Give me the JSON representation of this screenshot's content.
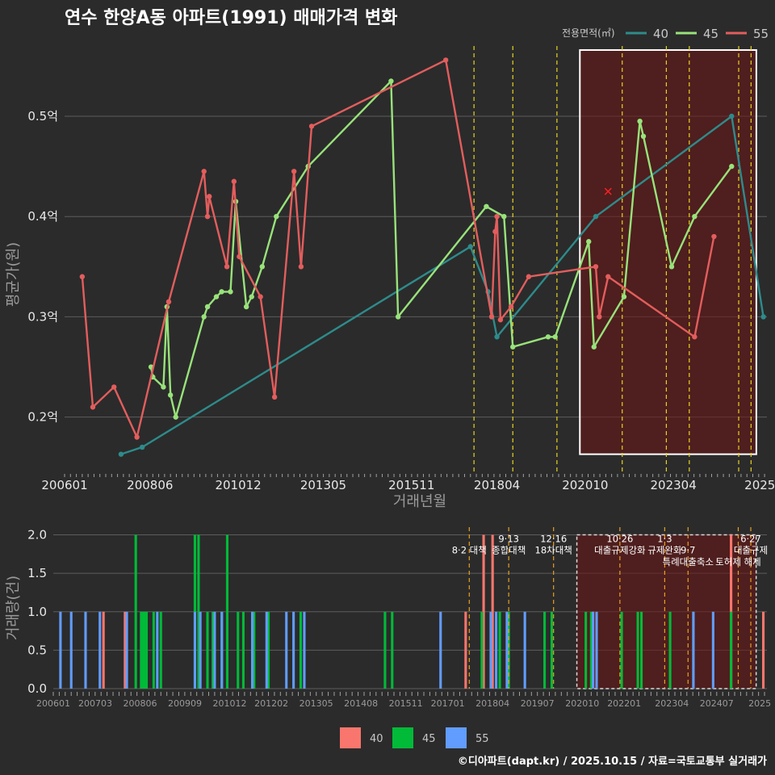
{
  "chart_data": [
    {
      "type": "line",
      "title": "연수 한양A동 아파트(1991) 매매가격 변화",
      "xlabel": "거래년월",
      "ylabel": "평균가(원)",
      "x_tick_labels": [
        "200601",
        "200806",
        "201012",
        "201305",
        "201511",
        "201804",
        "202010",
        "202304",
        "2025"
      ],
      "y_tick_labels": [
        "0.2억",
        "0.3억",
        "0.4억",
        "0.5억"
      ],
      "y_ticks": [
        0.2,
        0.3,
        0.4,
        0.5
      ],
      "ylim": [
        0.145,
        0.57
      ],
      "xlim": [
        2006.0,
        2025.9
      ],
      "legend_title": "전용면적(㎡)",
      "legend_position": "top-right",
      "policy_lines": [
        2017.6,
        2018.7,
        2019.95,
        2021.8,
        2023.05,
        2023.7,
        2025.1,
        2025.45
      ],
      "highlight_region": {
        "x_from": 2020.6,
        "x_to": 2025.6,
        "y_from": 0.163,
        "y_to": 0.566
      },
      "marker_x": {
        "x": 2021.4,
        "y": 0.425
      },
      "series": [
        {
          "name": "40",
          "color": "#2e8b8b",
          "x": [
            2007.6,
            2008.2,
            2017.5,
            2018.0,
            2018.25,
            2021.05,
            2024.9,
            2025.8
          ],
          "y": [
            0.163,
            0.17,
            0.37,
            0.325,
            0.28,
            0.4,
            0.5,
            0.3
          ]
        },
        {
          "name": "45",
          "color": "#98e27a",
          "x": [
            2008.45,
            2008.5,
            2008.8,
            2008.9,
            2009.0,
            2009.15,
            2009.95,
            2010.05,
            2010.3,
            2010.45,
            2010.7,
            2010.85,
            2011.15,
            2011.3,
            2011.6,
            2012.0,
            2012.9,
            2015.25,
            2015.45,
            2017.95,
            2018.45,
            2018.7,
            2019.7,
            2019.9,
            2020.85,
            2021.0,
            2021.85,
            2022.3,
            2022.4,
            2023.2,
            2023.85,
            2024.9
          ],
          "y": [
            0.25,
            0.24,
            0.23,
            0.31,
            0.222,
            0.2,
            0.3,
            0.31,
            0.32,
            0.325,
            0.325,
            0.415,
            0.31,
            0.32,
            0.35,
            0.4,
            0.45,
            0.535,
            0.3,
            0.41,
            0.4,
            0.27,
            0.28,
            0.28,
            0.375,
            0.27,
            0.32,
            0.495,
            0.48,
            0.35,
            0.4,
            0.45
          ]
        },
        {
          "name": "55",
          "color": "#e35d5d",
          "x": [
            2006.5,
            2006.8,
            2007.4,
            2008.05,
            2008.95,
            2009.95,
            2010.05,
            2010.1,
            2010.6,
            2010.8,
            2010.95,
            2011.55,
            2011.95,
            2012.5,
            2012.7,
            2013.0,
            2016.8,
            2018.1,
            2018.2,
            2018.25,
            2018.35,
            2018.65,
            2019.15,
            2021.05,
            2021.15,
            2021.4,
            2023.85,
            2024.4
          ],
          "y": [
            0.34,
            0.21,
            0.23,
            0.18,
            0.315,
            0.445,
            0.4,
            0.42,
            0.35,
            0.435,
            0.36,
            0.32,
            0.22,
            0.445,
            0.35,
            0.49,
            0.556,
            0.3,
            0.385,
            0.4,
            0.297,
            0.31,
            0.34,
            0.35,
            0.3,
            0.34,
            0.28,
            0.38
          ]
        }
      ]
    },
    {
      "type": "bar",
      "ylabel": "거래량(건)",
      "y_tick_labels": [
        "0.0",
        "0.5",
        "1.0",
        "1.5",
        "2.0"
      ],
      "y_ticks": [
        0.0,
        0.5,
        1.0,
        1.5,
        2.0
      ],
      "ylim": [
        0,
        2.1
      ],
      "xlim": [
        2006.0,
        2025.9
      ],
      "x_tick_labels": [
        "200601",
        "200703",
        "200806",
        "200909",
        "201012",
        "201202",
        "201305",
        "201408",
        "201511",
        "201701",
        "201804",
        "201907",
        "202010",
        "202201",
        "202304",
        "202407",
        "2025"
      ],
      "policy_lines": [
        2017.6,
        2018.7,
        2019.95,
        2021.8,
        2023.05,
        2023.7,
        2025.1,
        2025.45
      ],
      "highlight_region": {
        "x_from": 2020.6,
        "x_to": 2025.6
      },
      "events": [
        {
          "label": "8·2 대책",
          "x": 2017.6,
          "y": 1.8
        },
        {
          "label": "9·13",
          "x": 2018.7,
          "y": 1.95
        },
        {
          "label": "종합대책",
          "x": 2018.7,
          "y": 1.8
        },
        {
          "label": "12·16",
          "x": 2019.95,
          "y": 1.95
        },
        {
          "label": "18차대책",
          "x": 2019.95,
          "y": 1.8
        },
        {
          "label": "10·26",
          "x": 2021.8,
          "y": 1.95
        },
        {
          "label": "대출규제강화",
          "x": 2021.8,
          "y": 1.8
        },
        {
          "label": "1·3",
          "x": 2023.05,
          "y": 1.95
        },
        {
          "label": "규제완화",
          "x": 2023.05,
          "y": 1.8
        },
        {
          "label": "9·7",
          "x": 2023.7,
          "y": 1.8
        },
        {
          "label": "특례대출축소",
          "x": 2023.7,
          "y": 1.65
        },
        {
          "label": "6·27",
          "x": 2025.45,
          "y": 1.95
        },
        {
          "label": "대출규제",
          "x": 2025.45,
          "y": 1.8
        },
        {
          "label": "토허제 해제",
          "x": 2025.1,
          "y": 1.65
        }
      ],
      "bar_width_years": 0.07,
      "series": [
        {
          "name": "40",
          "color": "#f8766d",
          "x": [
            2007.4,
            2008.0,
            2017.5,
            2018.0,
            2018.25,
            2021.05,
            2024.9,
            2025.8
          ],
          "values": [
            1,
            1,
            1,
            2,
            2,
            1,
            2,
            1
          ]
        },
        {
          "name": "45",
          "color": "#00ba38",
          "x": [
            2008.3,
            2008.45,
            2008.5,
            2008.55,
            2008.6,
            2008.8,
            2009.0,
            2009.95,
            2010.05,
            2010.3,
            2010.45,
            2010.7,
            2010.85,
            2011.15,
            2011.3,
            2011.6,
            2012.0,
            2012.9,
            2015.25,
            2015.45,
            2017.95,
            2018.45,
            2018.7,
            2019.7,
            2019.9,
            2020.85,
            2021.0,
            2021.85,
            2022.3,
            2022.4,
            2023.2,
            2023.85,
            2024.9
          ],
          "values": [
            2,
            1,
            1,
            1,
            1,
            1,
            1,
            2,
            2,
            1,
            1,
            1,
            2,
            1,
            1,
            1,
            1,
            1,
            1,
            1,
            1,
            1,
            1,
            1,
            1,
            1,
            1,
            1,
            1,
            1,
            1,
            1,
            1
          ]
        },
        {
          "name": "55",
          "color": "#619cff",
          "x": [
            2006.2,
            2006.5,
            2006.9,
            2007.3,
            2008.05,
            2008.9,
            2009.95,
            2010.1,
            2010.5,
            2010.7,
            2011.55,
            2011.95,
            2012.5,
            2012.7,
            2013.0,
            2016.8,
            2018.2,
            2018.35,
            2018.65,
            2019.15,
            2021.05,
            2021.15,
            2023.85,
            2024.4
          ],
          "values": [
            1,
            1,
            1,
            1,
            1,
            1,
            1,
            1,
            1,
            1,
            1,
            1,
            1,
            1,
            1,
            1,
            1,
            1,
            1,
            1,
            1,
            1,
            1,
            1
          ]
        }
      ],
      "legend_labels": [
        "40",
        "45",
        "55"
      ]
    }
  ],
  "caption": "©디아파트(dapt.kr) / 2025.10.15 / 자료=국토교통부 실거래가"
}
